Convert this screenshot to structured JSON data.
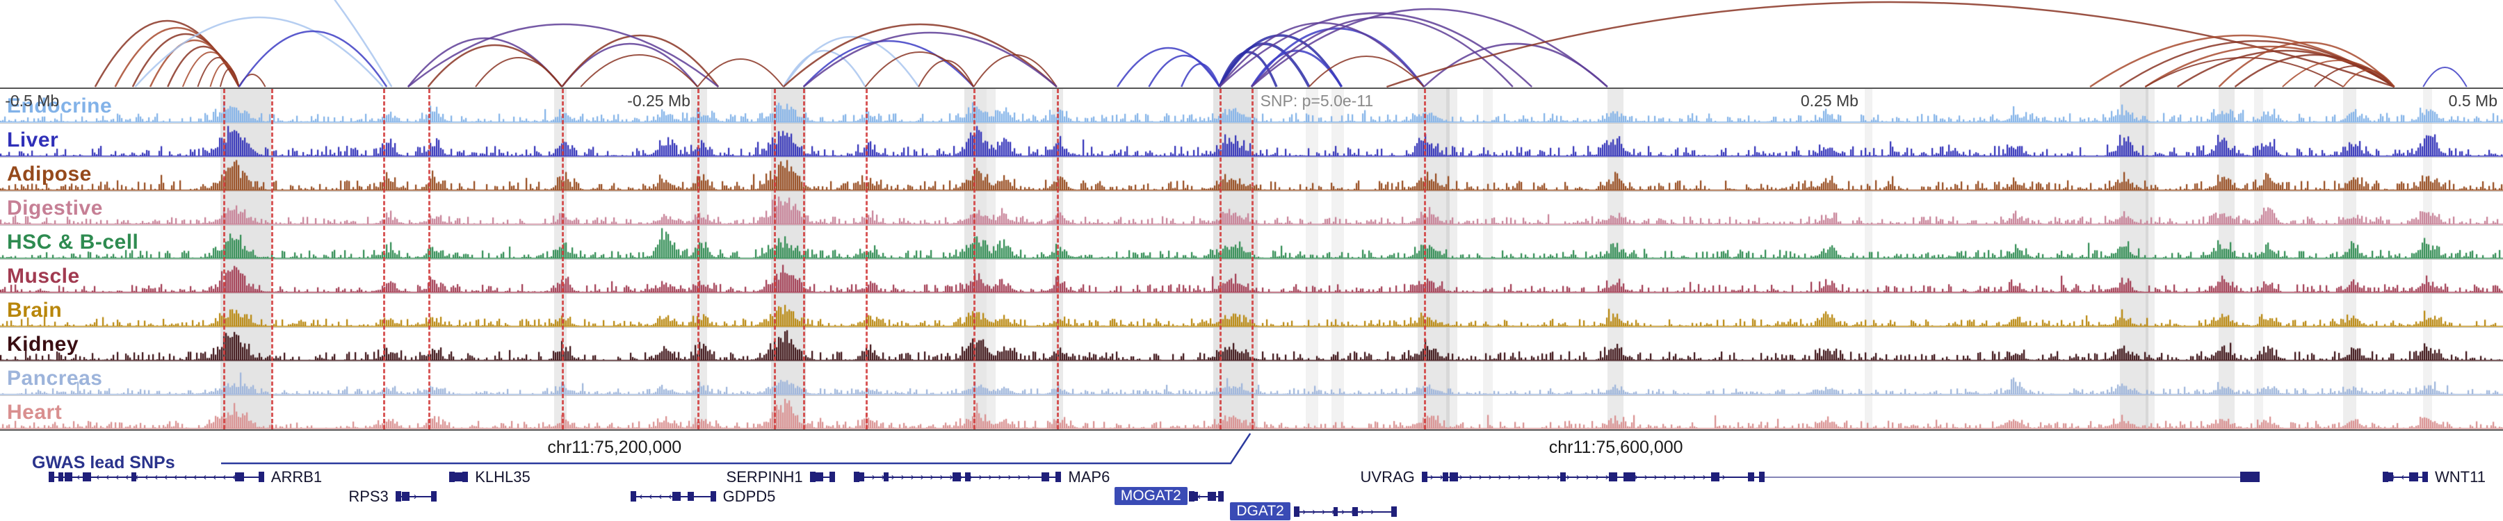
{
  "chart_data": {
    "type": "genome-browser",
    "description": "Tissue enhancer signal tracks with chromatin interaction arcs at a GWAS locus on chr11",
    "region": {
      "chromosome": "chr11",
      "window": "1 Mb"
    },
    "scale_labels": [
      {
        "text": "-0.5 Mb",
        "x": 0.002,
        "align": "left",
        "muted": false
      },
      {
        "text": "-0.25 Mb",
        "x": 0.2506,
        "align": "left",
        "muted": false
      },
      {
        "text": "SNP: p=5.0e-11",
        "x": 0.5035,
        "align": "left",
        "muted": true
      },
      {
        "text": "0.25 Mb",
        "x": 0.7194,
        "align": "left",
        "muted": false
      },
      {
        "text": "0.5 Mb",
        "x": 0.998,
        "align": "right",
        "muted": false
      }
    ],
    "chr_labels": [
      {
        "text": "chr11:75,200,000",
        "x": 0.2455
      },
      {
        "text": "chr11:75,600,000",
        "x": 0.6456
      }
    ],
    "gwas": {
      "label": "GWAS lead SNPs"
    },
    "snp": {
      "x": 0.4995,
      "label": "SNP: p=5.0e-11",
      "p_value": "5.0e-11"
    },
    "tracks": [
      {
        "name": "Endocrine",
        "color": "#82B2E8",
        "noise": 0.3,
        "seed": 11
      },
      {
        "name": "Liver",
        "color": "#3030B8",
        "noise": 0.34,
        "seed": 22
      },
      {
        "name": "Adipose",
        "color": "#95491B",
        "noise": 0.32,
        "seed": 33
      },
      {
        "name": "Digestive",
        "color": "#C67F95",
        "noise": 0.26,
        "seed": 44
      },
      {
        "name": "HSC & B-cell",
        "color": "#2E8B50",
        "noise": 0.28,
        "seed": 55
      },
      {
        "name": "Muscle",
        "color": "#A13A50",
        "noise": 0.27,
        "seed": 66
      },
      {
        "name": "Brain",
        "color": "#B8860B",
        "noise": 0.25,
        "seed": 77
      },
      {
        "name": "Kidney",
        "color": "#3A0E12",
        "noise": 0.3,
        "seed": 88
      },
      {
        "name": "Pancreas",
        "color": "#9DB4DB",
        "noise": 0.2,
        "seed": 99
      },
      {
        "name": "Heart",
        "color": "#D98F8F",
        "noise": 0.25,
        "seed": 110
      }
    ],
    "hotspots": [
      {
        "x": 0.093,
        "w": 0.0045,
        "amp": [
          0.7,
          1.0,
          0.95,
          0.5,
          0.7,
          0.85,
          0.6,
          1.0,
          0.45,
          0.7
        ]
      },
      {
        "x": 0.155,
        "w": 0.0025,
        "amp": [
          0.3,
          0.4,
          0.35,
          0.25,
          0.3,
          0.3,
          0.25,
          0.35,
          0.2,
          0.3
        ]
      },
      {
        "x": 0.173,
        "w": 0.0025,
        "amp": [
          0.45,
          0.5,
          0.4,
          0.3,
          0.35,
          0.35,
          0.3,
          0.4,
          0.25,
          0.35
        ]
      },
      {
        "x": 0.225,
        "w": 0.0025,
        "amp": [
          0.35,
          0.45,
          0.4,
          0.3,
          0.5,
          0.35,
          0.3,
          0.45,
          0.25,
          0.3
        ]
      },
      {
        "x": 0.266,
        "w": 0.003,
        "amp": [
          0.3,
          0.4,
          0.35,
          0.3,
          1.0,
          0.3,
          0.3,
          0.4,
          0.2,
          0.3
        ]
      },
      {
        "x": 0.28,
        "w": 0.0025,
        "amp": [
          0.35,
          0.45,
          0.5,
          0.35,
          0.45,
          0.4,
          0.3,
          0.5,
          0.25,
          0.35
        ]
      },
      {
        "x": 0.313,
        "w": 0.0045,
        "amp": [
          0.6,
          0.8,
          1.0,
          0.95,
          0.6,
          0.8,
          0.6,
          1.0,
          0.5,
          0.9
        ]
      },
      {
        "x": 0.347,
        "w": 0.0025,
        "amp": [
          0.3,
          0.4,
          0.35,
          0.3,
          0.35,
          0.3,
          0.3,
          0.45,
          0.2,
          0.3
        ]
      },
      {
        "x": 0.39,
        "w": 0.0035,
        "amp": [
          0.6,
          0.9,
          0.7,
          0.5,
          0.8,
          0.5,
          0.45,
          0.8,
          0.35,
          0.5
        ]
      },
      {
        "x": 0.401,
        "w": 0.0025,
        "amp": [
          0.4,
          0.6,
          0.5,
          0.35,
          0.5,
          0.4,
          0.3,
          0.5,
          0.25,
          0.35
        ]
      },
      {
        "x": 0.423,
        "w": 0.0025,
        "amp": [
          0.35,
          0.5,
          0.4,
          0.3,
          0.4,
          0.35,
          0.3,
          0.45,
          0.2,
          0.3
        ]
      },
      {
        "x": 0.492,
        "w": 0.0045,
        "amp": [
          0.4,
          0.5,
          0.45,
          0.4,
          0.4,
          0.4,
          0.35,
          0.5,
          0.3,
          0.4
        ]
      },
      {
        "x": 0.57,
        "w": 0.0035,
        "amp": [
          0.4,
          0.5,
          0.6,
          0.4,
          0.45,
          0.4,
          0.35,
          0.55,
          0.3,
          0.4
        ]
      },
      {
        "x": 0.645,
        "w": 0.003,
        "amp": [
          0.35,
          0.7,
          0.45,
          0.35,
          0.4,
          0.35,
          0.3,
          0.45,
          0.25,
          0.3
        ]
      },
      {
        "x": 0.73,
        "w": 0.0025,
        "amp": [
          0.3,
          0.4,
          0.35,
          0.3,
          0.35,
          0.3,
          0.45,
          0.4,
          0.2,
          0.3
        ]
      },
      {
        "x": 0.805,
        "w": 0.0025,
        "amp": [
          0.3,
          0.35,
          0.3,
          0.3,
          0.3,
          0.25,
          0.25,
          0.35,
          0.45,
          0.25
        ]
      },
      {
        "x": 0.848,
        "w": 0.003,
        "amp": [
          0.4,
          0.5,
          0.45,
          0.35,
          0.45,
          0.35,
          0.3,
          0.5,
          0.3,
          0.35
        ]
      },
      {
        "x": 0.888,
        "w": 0.003,
        "amp": [
          0.4,
          0.55,
          0.5,
          0.4,
          0.5,
          0.4,
          0.35,
          0.5,
          0.3,
          0.4
        ]
      },
      {
        "x": 0.906,
        "w": 0.0025,
        "amp": [
          0.35,
          0.45,
          0.4,
          0.6,
          0.4,
          0.3,
          0.3,
          0.45,
          0.25,
          0.3
        ]
      },
      {
        "x": 0.94,
        "w": 0.0025,
        "amp": [
          0.4,
          0.5,
          0.4,
          0.35,
          0.45,
          0.3,
          0.3,
          0.4,
          0.25,
          0.3
        ]
      },
      {
        "x": 0.97,
        "w": 0.003,
        "amp": [
          0.45,
          0.7,
          0.5,
          0.4,
          0.5,
          0.4,
          0.35,
          0.5,
          0.3,
          0.4
        ]
      }
    ],
    "red_dashed_lines": [
      0.0893,
      0.1084,
      0.153,
      0.171,
      0.2245,
      0.2787,
      0.3093,
      0.3208,
      0.3457,
      0.389,
      0.4222,
      0.4872,
      0.5,
      0.5689
    ],
    "highlight_bands": [
      {
        "x": 0.088,
        "w": 0.0204,
        "o": 0.16
      },
      {
        "x": 0.2213,
        "w": 0.005,
        "o": 0.12
      },
      {
        "x": 0.2761,
        "w": 0.0064,
        "o": 0.12
      },
      {
        "x": 0.308,
        "w": 0.014,
        "o": 0.16
      },
      {
        "x": 0.3852,
        "w": 0.009,
        "o": 0.14
      },
      {
        "x": 0.3941,
        "w": 0.0038,
        "o": 0.1
      },
      {
        "x": 0.4203,
        "w": 0.0045,
        "o": 0.12
      },
      {
        "x": 0.4847,
        "w": 0.0179,
        "o": 0.16
      },
      {
        "x": 0.5217,
        "w": 0.0051,
        "o": 0.08
      },
      {
        "x": 0.5319,
        "w": 0.0051,
        "o": 0.08
      },
      {
        "x": 0.5663,
        "w": 0.0128,
        "o": 0.14
      },
      {
        "x": 0.5778,
        "w": 0.0045,
        "o": 0.1
      },
      {
        "x": 0.5925,
        "w": 0.0038,
        "o": 0.08
      },
      {
        "x": 0.6422,
        "w": 0.0064,
        "o": 0.12
      },
      {
        "x": 0.7449,
        "w": 0.0032,
        "o": 0.08
      },
      {
        "x": 0.8469,
        "w": 0.0115,
        "o": 0.14
      },
      {
        "x": 0.8571,
        "w": 0.0038,
        "o": 0.1
      },
      {
        "x": 0.8865,
        "w": 0.0064,
        "o": 0.12
      },
      {
        "x": 0.9005,
        "w": 0.0038,
        "o": 0.08
      },
      {
        "x": 0.9362,
        "w": 0.0051,
        "o": 0.1
      },
      {
        "x": 0.968,
        "w": 0.0038,
        "o": 0.08
      }
    ],
    "arc_colors": {
      "mar": "#8A3524",
      "rust": "#A84B2F",
      "pur": "#5E3D96",
      "blue": "#3D3DC4",
      "nav": "#2B2BA6",
      "lbl": "#A9C6EF"
    },
    "arcs": [
      [
        0.038,
        0.0955,
        95,
        "mar",
        2.5
      ],
      [
        0.046,
        0.0955,
        85,
        "rust",
        2.5
      ],
      [
        0.053,
        0.0955,
        76,
        "mar",
        2.5
      ],
      [
        0.06,
        0.0955,
        67,
        "rust",
        2.5
      ],
      [
        0.067,
        0.0955,
        58,
        "mar",
        2.5
      ],
      [
        0.073,
        0.0955,
        50,
        "rust",
        2
      ],
      [
        0.079,
        0.0955,
        42,
        "mar",
        2
      ],
      [
        0.084,
        0.0955,
        34,
        "rust",
        2
      ],
      [
        0.088,
        0.0955,
        26,
        "mar",
        2
      ],
      [
        0.0955,
        0.106,
        18,
        "mar",
        2
      ],
      [
        0.054,
        0.153,
        100,
        "lbl",
        2.5
      ],
      [
        0.0955,
        0.1545,
        80,
        "blue",
        2.5
      ],
      [
        -0.08,
        0.1565,
        360,
        "lbl",
        2.5
      ],
      [
        0.163,
        0.2245,
        70,
        "pur",
        2.5
      ],
      [
        0.171,
        0.2245,
        60,
        "mar",
        2.5
      ],
      [
        0.19,
        0.2245,
        42,
        "mar",
        2
      ],
      [
        0.2245,
        0.2787,
        62,
        "pur",
        2.5
      ],
      [
        0.2245,
        0.287,
        74,
        "mar",
        2.5
      ],
      [
        0.232,
        0.2787,
        46,
        "mar",
        2
      ],
      [
        0.163,
        0.287,
        90,
        "pur",
        2.5
      ],
      [
        0.2787,
        0.313,
        40,
        "mar",
        2
      ],
      [
        0.313,
        0.3457,
        52,
        "lbl",
        2.5
      ],
      [
        0.313,
        0.367,
        72,
        "lbl",
        2.5
      ],
      [
        0.321,
        0.389,
        66,
        "blue",
        2.5
      ],
      [
        0.3457,
        0.389,
        50,
        "mar",
        2
      ],
      [
        0.367,
        0.389,
        38,
        "mar",
        2
      ],
      [
        0.389,
        0.4222,
        46,
        "mar",
        2
      ],
      [
        0.313,
        0.4222,
        90,
        "mar",
        2.5
      ],
      [
        0.321,
        0.4222,
        78,
        "pur",
        2.5
      ],
      [
        0.4464,
        0.4872,
        56,
        "blue",
        2.5
      ],
      [
        0.459,
        0.4872,
        45,
        "blue",
        2.5
      ],
      [
        0.472,
        0.4872,
        33,
        "blue",
        2.5
      ],
      [
        0.4872,
        0.51,
        50,
        "nav",
        3.5
      ],
      [
        0.4872,
        0.523,
        62,
        "nav",
        4
      ],
      [
        0.4872,
        0.536,
        74,
        "nav",
        3.5
      ],
      [
        0.5,
        0.536,
        52,
        "blue",
        3
      ],
      [
        0.5,
        0.5689,
        84,
        "blue",
        3
      ],
      [
        0.4872,
        0.5689,
        92,
        "pur",
        2.5
      ],
      [
        0.5,
        0.6044,
        100,
        "pur",
        2.5
      ],
      [
        0.4872,
        0.612,
        106,
        "pur",
        2.5
      ],
      [
        0.523,
        0.5689,
        44,
        "mar",
        2
      ],
      [
        0.5689,
        0.6422,
        62,
        "pur",
        2.5
      ],
      [
        0.5,
        0.6422,
        112,
        "pur",
        2.5
      ],
      [
        0.554,
        0.9566,
        122,
        "mar",
        2.5
      ],
      [
        0.835,
        0.9566,
        74,
        "rust",
        2.5
      ],
      [
        0.8469,
        0.9566,
        66,
        "mar",
        2.5
      ],
      [
        0.857,
        0.9566,
        58,
        "rust",
        2.5
      ],
      [
        0.8699,
        0.9566,
        52,
        "mar",
        2.5
      ],
      [
        0.8865,
        0.9566,
        64,
        "rust",
        2.5
      ],
      [
        0.8929,
        0.9566,
        46,
        "mar",
        2.5
      ],
      [
        0.9119,
        0.9566,
        38,
        "rust",
        2
      ],
      [
        0.9247,
        0.9566,
        30,
        "mar",
        2
      ],
      [
        0.9362,
        0.9566,
        24,
        "rust",
        2
      ],
      [
        0.8571,
        0.9362,
        42,
        "mar",
        2
      ],
      [
        0.9681,
        0.9855,
        28,
        "blue",
        2
      ]
    ],
    "genes": [
      {
        "name": "ARRB1",
        "x1": 0.0195,
        "x2": 0.1055,
        "row": 0,
        "dir": "left",
        "label_side": "right",
        "highlight": false
      },
      {
        "name": "RPS3",
        "x1": 0.158,
        "x2": 0.1745,
        "row": 1,
        "dir": "right",
        "label_side": "left",
        "highlight": false
      },
      {
        "name": "KLHL35",
        "x1": 0.1795,
        "x2": 0.187,
        "row": 0,
        "dir": "right",
        "label_side": "right",
        "highlight": false
      },
      {
        "name": "GDPD5",
        "x1": 0.252,
        "x2": 0.286,
        "row": 1,
        "dir": "left",
        "label_side": "right",
        "highlight": false
      },
      {
        "name": "SERPINH1",
        "x1": 0.3235,
        "x2": 0.3335,
        "row": 0,
        "dir": "left",
        "label_side": "left",
        "highlight": false
      },
      {
        "name": "MAP6",
        "x1": 0.341,
        "x2": 0.424,
        "row": 0,
        "dir": "right",
        "label_side": "right",
        "highlight": false
      },
      {
        "name": "MOGAT2",
        "x1": 0.475,
        "x2": 0.489,
        "row": 1,
        "dir": "left",
        "label_side": "left",
        "highlight": true,
        "label_x": 0.4452
      },
      {
        "name": "DGAT2",
        "x1": 0.517,
        "x2": 0.558,
        "row": 2,
        "dir": "right",
        "label_side": "left",
        "highlight": true,
        "label_x": 0.4915
      },
      {
        "name": "UVRAG",
        "x1": 0.568,
        "x2": 0.705,
        "row": 0,
        "dir": "right",
        "label_side": "left",
        "highlight": false,
        "end_box_x": 0.895
      },
      {
        "name": "WNT11",
        "x1": 0.952,
        "x2": 0.97,
        "row": 0,
        "dir": "left",
        "label_side": "right",
        "highlight": false
      }
    ],
    "gene_color": "#1F1F7A",
    "highlight_gene_bg": "#3A4BB5"
  }
}
